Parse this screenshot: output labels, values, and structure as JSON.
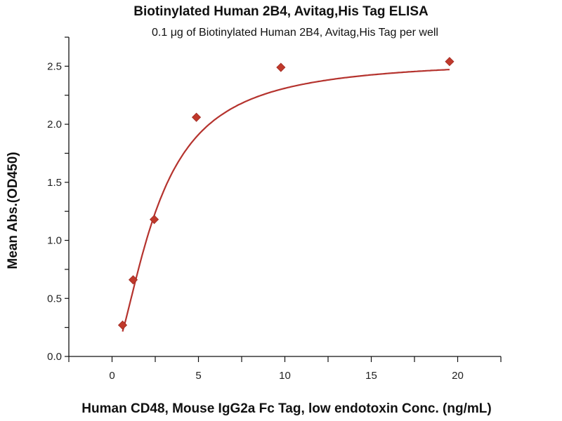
{
  "chart_data": {
    "type": "scatter",
    "title": "Biotinylated Human 2B4, Avitag,His Tag ELISA",
    "subtitle": "0.1 μg of Biotinylated Human 2B4, Avitag,His Tag per well",
    "xlabel": "Human CD48, Mouse IgG2a Fc Tag, low endotoxin Conc. (ng/mL)",
    "ylabel": "Mean Abs.(OD450)",
    "xlim": [
      -2.5,
      22.5
    ],
    "ylim": [
      0,
      2.75
    ],
    "xticks": [
      0,
      5,
      10,
      15,
      20
    ],
    "xtick_labels": [
      "0",
      "5",
      "10",
      "15",
      "20"
    ],
    "yticks": [
      0,
      0.5,
      1,
      1.5,
      2,
      2.5
    ],
    "ytick_labels": [
      "0.0",
      "0.5",
      "1.0",
      "1.5",
      "2.0",
      "2.5"
    ],
    "grid": false,
    "color": "#c0392b",
    "curve_color": "#b5332e",
    "series": [
      {
        "name": "Mean Abs.(OD450)",
        "x": [
          0.61,
          1.22,
          2.44,
          4.88,
          9.77,
          19.53
        ],
        "y": [
          0.27,
          0.66,
          1.18,
          2.06,
          2.49,
          2.54
        ]
      }
    ],
    "fit": {
      "type": "4PL",
      "bottom": 0,
      "top": 2.56,
      "ec50": 2.6,
      "hill": 1.65
    }
  }
}
